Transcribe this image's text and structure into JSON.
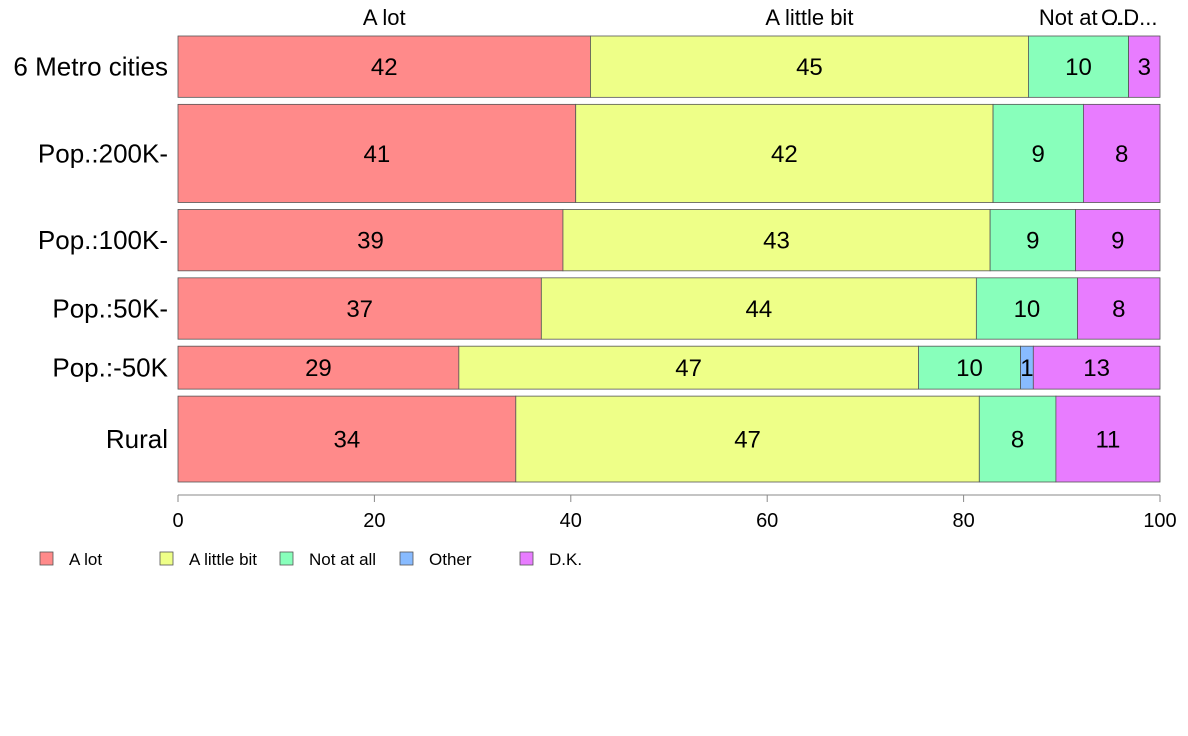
{
  "chart_data": {
    "type": "bar",
    "orientation": "horizontal",
    "stacked": true,
    "categories": [
      "6 Metro cities",
      "Pop.:200K-",
      "Pop.:100K-",
      "Pop.:50K-",
      "Pop.:-50K",
      "Rural"
    ],
    "relative_widths": [
      1,
      1.6,
      1,
      1,
      0.7,
      1.4
    ],
    "series": [
      {
        "name": "A lot",
        "color": "#FF8A8A",
        "values": [
          42,
          40.5,
          39.2,
          37,
          28.6,
          34.4
        ],
        "labels": [
          "42",
          "41",
          "39",
          "37",
          "29",
          "34"
        ]
      },
      {
        "name": "A little bit",
        "color": "#EEFF88",
        "values": [
          44.6,
          42.5,
          43.5,
          44.3,
          46.8,
          47.2
        ],
        "labels": [
          "45",
          "42",
          "43",
          "44",
          "47",
          "47"
        ]
      },
      {
        "name": "Not at all",
        "color": "#88FFBB",
        "values": [
          10.2,
          9.2,
          8.7,
          10.3,
          10.4,
          7.8
        ],
        "labels": [
          "10",
          "9",
          "9",
          "10",
          "10",
          "8"
        ]
      },
      {
        "name": "Other",
        "color": "#88BBFF",
        "values": [
          0,
          0,
          0,
          0,
          1.3,
          0
        ],
        "labels": [
          "",
          "",
          "",
          "",
          "1",
          ""
        ]
      },
      {
        "name": "D.K.",
        "color": "#E87CFF",
        "values": [
          3.2,
          7.8,
          8.6,
          8.4,
          12.9,
          10.6
        ],
        "labels": [
          "3",
          "8",
          "9",
          "8",
          "13",
          "11"
        ]
      }
    ],
    "top_labels": [
      "A lot",
      "A little bit",
      "Not at ...",
      "O...",
      "D..."
    ],
    "xlim": [
      0,
      100
    ],
    "xticks": [
      "0",
      "20",
      "40",
      "60",
      "80",
      "100"
    ],
    "legend": {
      "placement": "bottom-left",
      "entries": [
        "A lot",
        "A little bit",
        "Not at all",
        "Other",
        "D.K."
      ]
    },
    "grid": false
  }
}
